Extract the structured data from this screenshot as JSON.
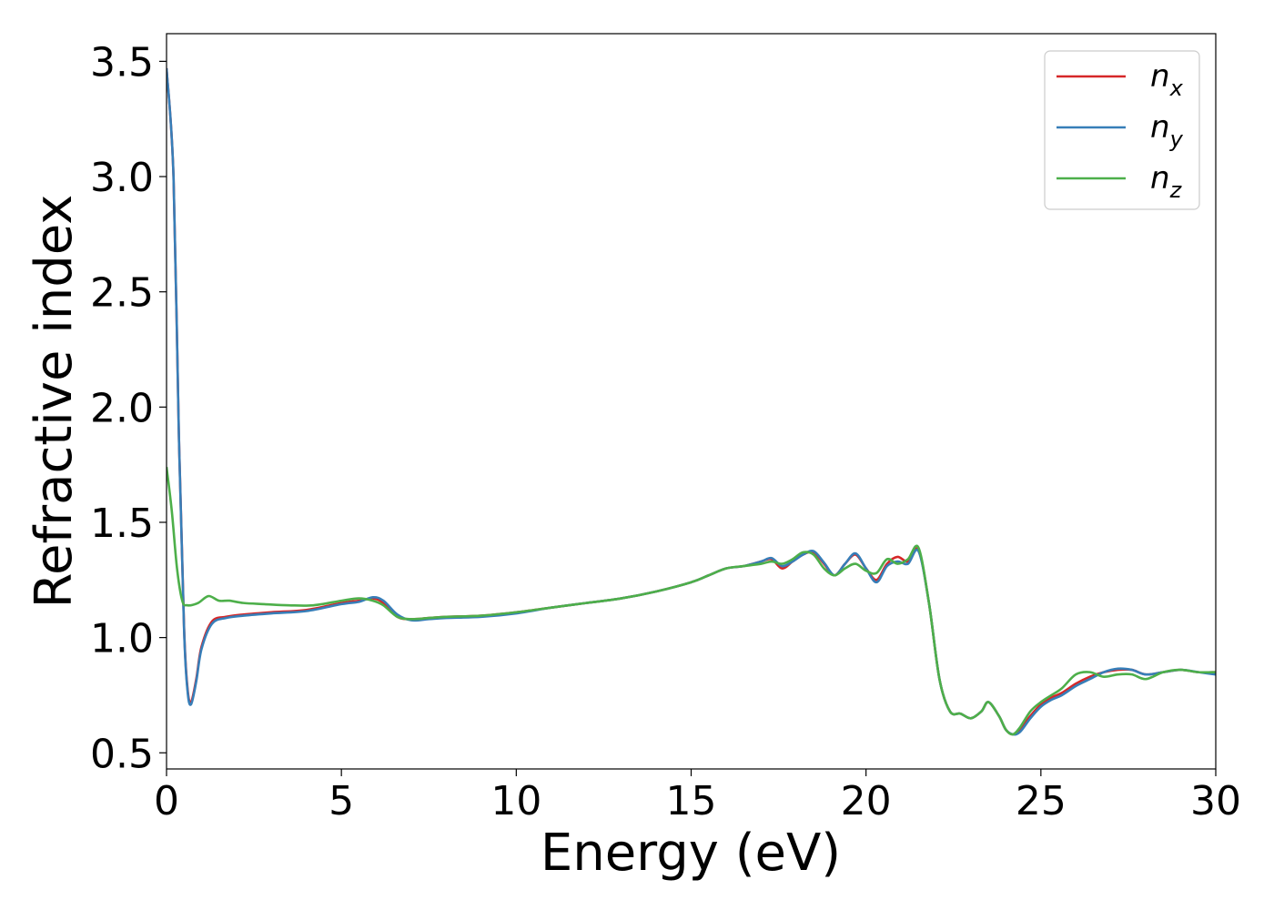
{
  "chart_data": {
    "type": "line",
    "xlabel": "Energy (eV)",
    "ylabel": "Refractive index",
    "xlim": [
      0,
      30
    ],
    "ylim": [
      0.43,
      3.62
    ],
    "xticks": [
      "0",
      "5",
      "10",
      "15",
      "20",
      "25",
      "30"
    ],
    "yticks": [
      "0.5",
      "1.0",
      "1.5",
      "2.0",
      "2.5",
      "3.0",
      "3.5"
    ],
    "grid": false,
    "legend_position": "top-right",
    "series": [
      {
        "name": "n_x",
        "color": "#d62728",
        "x": [
          0,
          0.2,
          0.35,
          0.5,
          0.6,
          0.7,
          0.85,
          1.0,
          1.3,
          1.7,
          2.2,
          3.0,
          4.0,
          5.0,
          5.5,
          5.9,
          6.2,
          6.6,
          7.0,
          7.5,
          8.0,
          9.0,
          10,
          11,
          12,
          13,
          14,
          15,
          15.5,
          16.0,
          16.5,
          17.0,
          17.3,
          17.6,
          17.9,
          18.2,
          18.5,
          18.8,
          19.1,
          19.4,
          19.7,
          20.0,
          20.3,
          20.6,
          20.9,
          21.2,
          21.5,
          21.8,
          22.1,
          22.4,
          22.7,
          23.0,
          23.3,
          23.5,
          23.8,
          24.0,
          24.2,
          24.4,
          24.7,
          25.0,
          25.3,
          25.6,
          26.0,
          26.4,
          26.8,
          27.2,
          27.6,
          28.0,
          28.5,
          29.0,
          29.5,
          30.0
        ],
        "y": [
          3.47,
          3.0,
          1.9,
          1.05,
          0.78,
          0.72,
          0.82,
          0.96,
          1.07,
          1.09,
          1.1,
          1.11,
          1.12,
          1.15,
          1.16,
          1.17,
          1.15,
          1.09,
          1.08,
          1.085,
          1.09,
          1.095,
          1.11,
          1.13,
          1.15,
          1.17,
          1.2,
          1.24,
          1.27,
          1.3,
          1.31,
          1.33,
          1.34,
          1.3,
          1.33,
          1.36,
          1.37,
          1.32,
          1.27,
          1.32,
          1.36,
          1.3,
          1.25,
          1.32,
          1.35,
          1.33,
          1.38,
          1.15,
          0.82,
          0.68,
          0.67,
          0.65,
          0.68,
          0.72,
          0.66,
          0.6,
          0.58,
          0.6,
          0.66,
          0.71,
          0.74,
          0.76,
          0.8,
          0.83,
          0.85,
          0.86,
          0.86,
          0.84,
          0.85,
          0.86,
          0.85,
          0.85
        ]
      },
      {
        "name": "n_y",
        "color": "#377eb8",
        "x": [
          0,
          0.2,
          0.35,
          0.5,
          0.6,
          0.7,
          0.85,
          1.0,
          1.3,
          1.7,
          2.2,
          3.0,
          4.0,
          5.0,
          5.5,
          5.9,
          6.2,
          6.6,
          7.0,
          7.5,
          8.0,
          9.0,
          10,
          11,
          12,
          13,
          14,
          15,
          15.5,
          16.0,
          16.5,
          17.0,
          17.3,
          17.6,
          17.9,
          18.2,
          18.5,
          18.8,
          19.1,
          19.4,
          19.7,
          20.0,
          20.3,
          20.6,
          20.9,
          21.2,
          21.5,
          21.8,
          22.1,
          22.4,
          22.7,
          23.0,
          23.3,
          23.5,
          23.8,
          24.0,
          24.2,
          24.4,
          24.7,
          25.0,
          25.3,
          25.6,
          26.0,
          26.4,
          26.8,
          27.2,
          27.6,
          28.0,
          28.5,
          29.0,
          29.5,
          30.0
        ],
        "y": [
          3.47,
          3.0,
          1.9,
          1.04,
          0.77,
          0.71,
          0.81,
          0.95,
          1.06,
          1.085,
          1.095,
          1.105,
          1.115,
          1.145,
          1.155,
          1.175,
          1.16,
          1.1,
          1.075,
          1.08,
          1.085,
          1.09,
          1.105,
          1.13,
          1.15,
          1.17,
          1.2,
          1.24,
          1.27,
          1.3,
          1.31,
          1.33,
          1.345,
          1.31,
          1.33,
          1.36,
          1.375,
          1.325,
          1.27,
          1.32,
          1.365,
          1.3,
          1.24,
          1.31,
          1.33,
          1.32,
          1.375,
          1.15,
          0.82,
          0.68,
          0.67,
          0.65,
          0.68,
          0.72,
          0.66,
          0.6,
          0.58,
          0.59,
          0.65,
          0.7,
          0.73,
          0.75,
          0.79,
          0.82,
          0.85,
          0.865,
          0.86,
          0.84,
          0.85,
          0.86,
          0.85,
          0.84
        ]
      },
      {
        "name": "n_z",
        "color": "#4daf4a",
        "x": [
          0,
          0.15,
          0.3,
          0.45,
          0.6,
          0.9,
          1.2,
          1.5,
          1.8,
          2.2,
          2.8,
          3.5,
          4.2,
          5.0,
          5.5,
          5.9,
          6.2,
          6.6,
          7.0,
          7.5,
          8.0,
          9.0,
          10,
          11,
          12,
          13,
          14,
          15,
          15.5,
          16.0,
          16.5,
          17.0,
          17.3,
          17.6,
          17.9,
          18.2,
          18.5,
          18.8,
          19.1,
          19.4,
          19.7,
          20.0,
          20.3,
          20.6,
          20.9,
          21.2,
          21.5,
          21.8,
          22.1,
          22.4,
          22.7,
          23.0,
          23.3,
          23.5,
          23.8,
          24.0,
          24.2,
          24.4,
          24.7,
          25.0,
          25.3,
          25.6,
          26.0,
          26.4,
          26.8,
          27.2,
          27.6,
          28.0,
          28.5,
          29.0,
          29.5,
          30.0
        ],
        "y": [
          1.74,
          1.55,
          1.3,
          1.16,
          1.14,
          1.15,
          1.18,
          1.16,
          1.16,
          1.15,
          1.145,
          1.14,
          1.14,
          1.16,
          1.17,
          1.16,
          1.14,
          1.09,
          1.08,
          1.085,
          1.09,
          1.095,
          1.11,
          1.13,
          1.15,
          1.17,
          1.2,
          1.24,
          1.27,
          1.3,
          1.31,
          1.32,
          1.33,
          1.32,
          1.34,
          1.37,
          1.36,
          1.3,
          1.27,
          1.3,
          1.32,
          1.29,
          1.28,
          1.34,
          1.32,
          1.34,
          1.39,
          1.15,
          0.82,
          0.68,
          0.67,
          0.65,
          0.68,
          0.72,
          0.66,
          0.6,
          0.58,
          0.61,
          0.68,
          0.72,
          0.75,
          0.78,
          0.84,
          0.85,
          0.83,
          0.84,
          0.84,
          0.82,
          0.85,
          0.86,
          0.85,
          0.85
        ]
      }
    ]
  }
}
